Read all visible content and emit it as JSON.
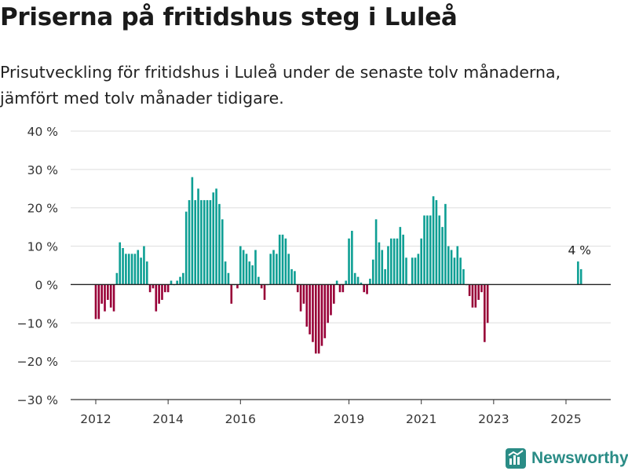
{
  "title": "Priserna på fritidshus steg i Luleå",
  "subtitle": "Prisutveckling för fritidshus i Luleå under de senaste tolv månaderna, jämfört med tolv månader tidigare.",
  "brand": "Newsworthy",
  "colors": {
    "positive": "#0e9f94",
    "negative": "#980037",
    "brand": "#2a8c86"
  },
  "chart_data": {
    "type": "bar",
    "ylim": [
      -30,
      40
    ],
    "yticks": [
      -30,
      -20,
      -10,
      0,
      10,
      20,
      30,
      40
    ],
    "ytick_labels": [
      "−30 %",
      "−20 %",
      "−10 %",
      "0 %",
      "10 %",
      "20 %",
      "30 %",
      "40 %"
    ],
    "xticks": [
      2012,
      2014,
      2016,
      2019,
      2021,
      2023,
      2025
    ],
    "grid": true,
    "annotation": {
      "label": "4 %",
      "value": 4
    },
    "series": [
      {
        "values": [
          {
            "x": "2012-01",
            "y": -9
          },
          {
            "x": "2012-02",
            "y": -9
          },
          {
            "x": "2012-03",
            "y": -5
          },
          {
            "x": "2012-04",
            "y": -7
          },
          {
            "x": "2012-05",
            "y": -4
          },
          {
            "x": "2012-06",
            "y": -6
          },
          {
            "x": "2012-07",
            "y": -7
          },
          {
            "x": "2012-08",
            "y": 3
          },
          {
            "x": "2012-09",
            "y": 11
          },
          {
            "x": "2012-10",
            "y": 9.5
          },
          {
            "x": "2012-11",
            "y": 8
          },
          {
            "x": "2012-12",
            "y": 8
          },
          {
            "x": "2013-01",
            "y": 8
          },
          {
            "x": "2013-02",
            "y": 8
          },
          {
            "x": "2013-03",
            "y": 9
          },
          {
            "x": "2013-04",
            "y": 7
          },
          {
            "x": "2013-05",
            "y": 10
          },
          {
            "x": "2013-06",
            "y": 6
          },
          {
            "x": "2013-07",
            "y": -2
          },
          {
            "x": "2013-08",
            "y": -1
          },
          {
            "x": "2013-09",
            "y": -7
          },
          {
            "x": "2013-10",
            "y": -5
          },
          {
            "x": "2013-11",
            "y": -4
          },
          {
            "x": "2013-12",
            "y": -2
          },
          {
            "x": "2014-01",
            "y": -2
          },
          {
            "x": "2014-02",
            "y": 1
          },
          {
            "x": "2014-03",
            "y": 0
          },
          {
            "x": "2014-04",
            "y": 1
          },
          {
            "x": "2014-05",
            "y": 2
          },
          {
            "x": "2014-06",
            "y": 3
          },
          {
            "x": "2014-07",
            "y": 19
          },
          {
            "x": "2014-08",
            "y": 22
          },
          {
            "x": "2014-09",
            "y": 28
          },
          {
            "x": "2014-10",
            "y": 22
          },
          {
            "x": "2014-11",
            "y": 25
          },
          {
            "x": "2014-12",
            "y": 22
          },
          {
            "x": "2015-01",
            "y": 22
          },
          {
            "x": "2015-02",
            "y": 22
          },
          {
            "x": "2015-03",
            "y": 22
          },
          {
            "x": "2015-04",
            "y": 24
          },
          {
            "x": "2015-05",
            "y": 25
          },
          {
            "x": "2015-06",
            "y": 21
          },
          {
            "x": "2015-07",
            "y": 17
          },
          {
            "x": "2015-08",
            "y": 6
          },
          {
            "x": "2015-09",
            "y": 3
          },
          {
            "x": "2015-10",
            "y": -5
          },
          {
            "x": "2015-11",
            "y": 0
          },
          {
            "x": "2015-12",
            "y": -1
          },
          {
            "x": "2016-01",
            "y": 10
          },
          {
            "x": "2016-02",
            "y": 9
          },
          {
            "x": "2016-03",
            "y": 8
          },
          {
            "x": "2016-04",
            "y": 6
          },
          {
            "x": "2016-05",
            "y": 5
          },
          {
            "x": "2016-06",
            "y": 9
          },
          {
            "x": "2016-07",
            "y": 2
          },
          {
            "x": "2016-08",
            "y": -1
          },
          {
            "x": "2016-09",
            "y": -4
          },
          {
            "x": "2016-10",
            "y": 0
          },
          {
            "x": "2016-11",
            "y": 8
          },
          {
            "x": "2016-12",
            "y": 9
          },
          {
            "x": "2017-01",
            "y": 8
          },
          {
            "x": "2017-02",
            "y": 13
          },
          {
            "x": "2017-03",
            "y": 13
          },
          {
            "x": "2017-04",
            "y": 12
          },
          {
            "x": "2017-05",
            "y": 8
          },
          {
            "x": "2017-06",
            "y": 4
          },
          {
            "x": "2017-07",
            "y": 3.5
          },
          {
            "x": "2017-08",
            "y": -2
          },
          {
            "x": "2017-09",
            "y": -7
          },
          {
            "x": "2017-10",
            "y": -5
          },
          {
            "x": "2017-11",
            "y": -11
          },
          {
            "x": "2017-12",
            "y": -13
          },
          {
            "x": "2018-01",
            "y": -15
          },
          {
            "x": "2018-02",
            "y": -18
          },
          {
            "x": "2018-03",
            "y": -18
          },
          {
            "x": "2018-04",
            "y": -16
          },
          {
            "x": "2018-05",
            "y": -14
          },
          {
            "x": "2018-06",
            "y": -10
          },
          {
            "x": "2018-07",
            "y": -8
          },
          {
            "x": "2018-08",
            "y": -5
          },
          {
            "x": "2018-09",
            "y": 1
          },
          {
            "x": "2018-10",
            "y": -2
          },
          {
            "x": "2018-11",
            "y": -2
          },
          {
            "x": "2018-12",
            "y": 1
          },
          {
            "x": "2019-01",
            "y": 12
          },
          {
            "x": "2019-02",
            "y": 14
          },
          {
            "x": "2019-03",
            "y": 3
          },
          {
            "x": "2019-04",
            "y": 2
          },
          {
            "x": "2019-05",
            "y": 0.5
          },
          {
            "x": "2019-06",
            "y": -2
          },
          {
            "x": "2019-07",
            "y": -2.5
          },
          {
            "x": "2019-08",
            "y": 1.5
          },
          {
            "x": "2019-09",
            "y": 6.5
          },
          {
            "x": "2019-10",
            "y": 17
          },
          {
            "x": "2019-11",
            "y": 11
          },
          {
            "x": "2019-12",
            "y": 9
          },
          {
            "x": "2020-01",
            "y": 4
          },
          {
            "x": "2020-02",
            "y": 10
          },
          {
            "x": "2020-03",
            "y": 12
          },
          {
            "x": "2020-04",
            "y": 12
          },
          {
            "x": "2020-05",
            "y": 12
          },
          {
            "x": "2020-06",
            "y": 15
          },
          {
            "x": "2020-07",
            "y": 13
          },
          {
            "x": "2020-08",
            "y": 7
          },
          {
            "x": "2020-09",
            "y": 0
          },
          {
            "x": "2020-10",
            "y": 7
          },
          {
            "x": "2020-11",
            "y": 7
          },
          {
            "x": "2020-12",
            "y": 8
          },
          {
            "x": "2021-01",
            "y": 12
          },
          {
            "x": "2021-02",
            "y": 18
          },
          {
            "x": "2021-03",
            "y": 18
          },
          {
            "x": "2021-04",
            "y": 18
          },
          {
            "x": "2021-05",
            "y": 23
          },
          {
            "x": "2021-06",
            "y": 22
          },
          {
            "x": "2021-07",
            "y": 18
          },
          {
            "x": "2021-08",
            "y": 15
          },
          {
            "x": "2021-09",
            "y": 21
          },
          {
            "x": "2021-10",
            "y": 10
          },
          {
            "x": "2021-11",
            "y": 9
          },
          {
            "x": "2021-12",
            "y": 7
          },
          {
            "x": "2022-01",
            "y": 10
          },
          {
            "x": "2022-02",
            "y": 7
          },
          {
            "x": "2022-03",
            "y": 4
          },
          {
            "x": "2022-04",
            "y": 0
          },
          {
            "x": "2022-05",
            "y": -3
          },
          {
            "x": "2022-06",
            "y": -6
          },
          {
            "x": "2022-07",
            "y": -6
          },
          {
            "x": "2022-08",
            "y": -4
          },
          {
            "x": "2022-09",
            "y": -2
          },
          {
            "x": "2022-10",
            "y": -15
          },
          {
            "x": "2022-11",
            "y": -10
          },
          {
            "x": "2025-05",
            "y": 6
          },
          {
            "x": "2025-06",
            "y": 4
          }
        ]
      }
    ]
  }
}
